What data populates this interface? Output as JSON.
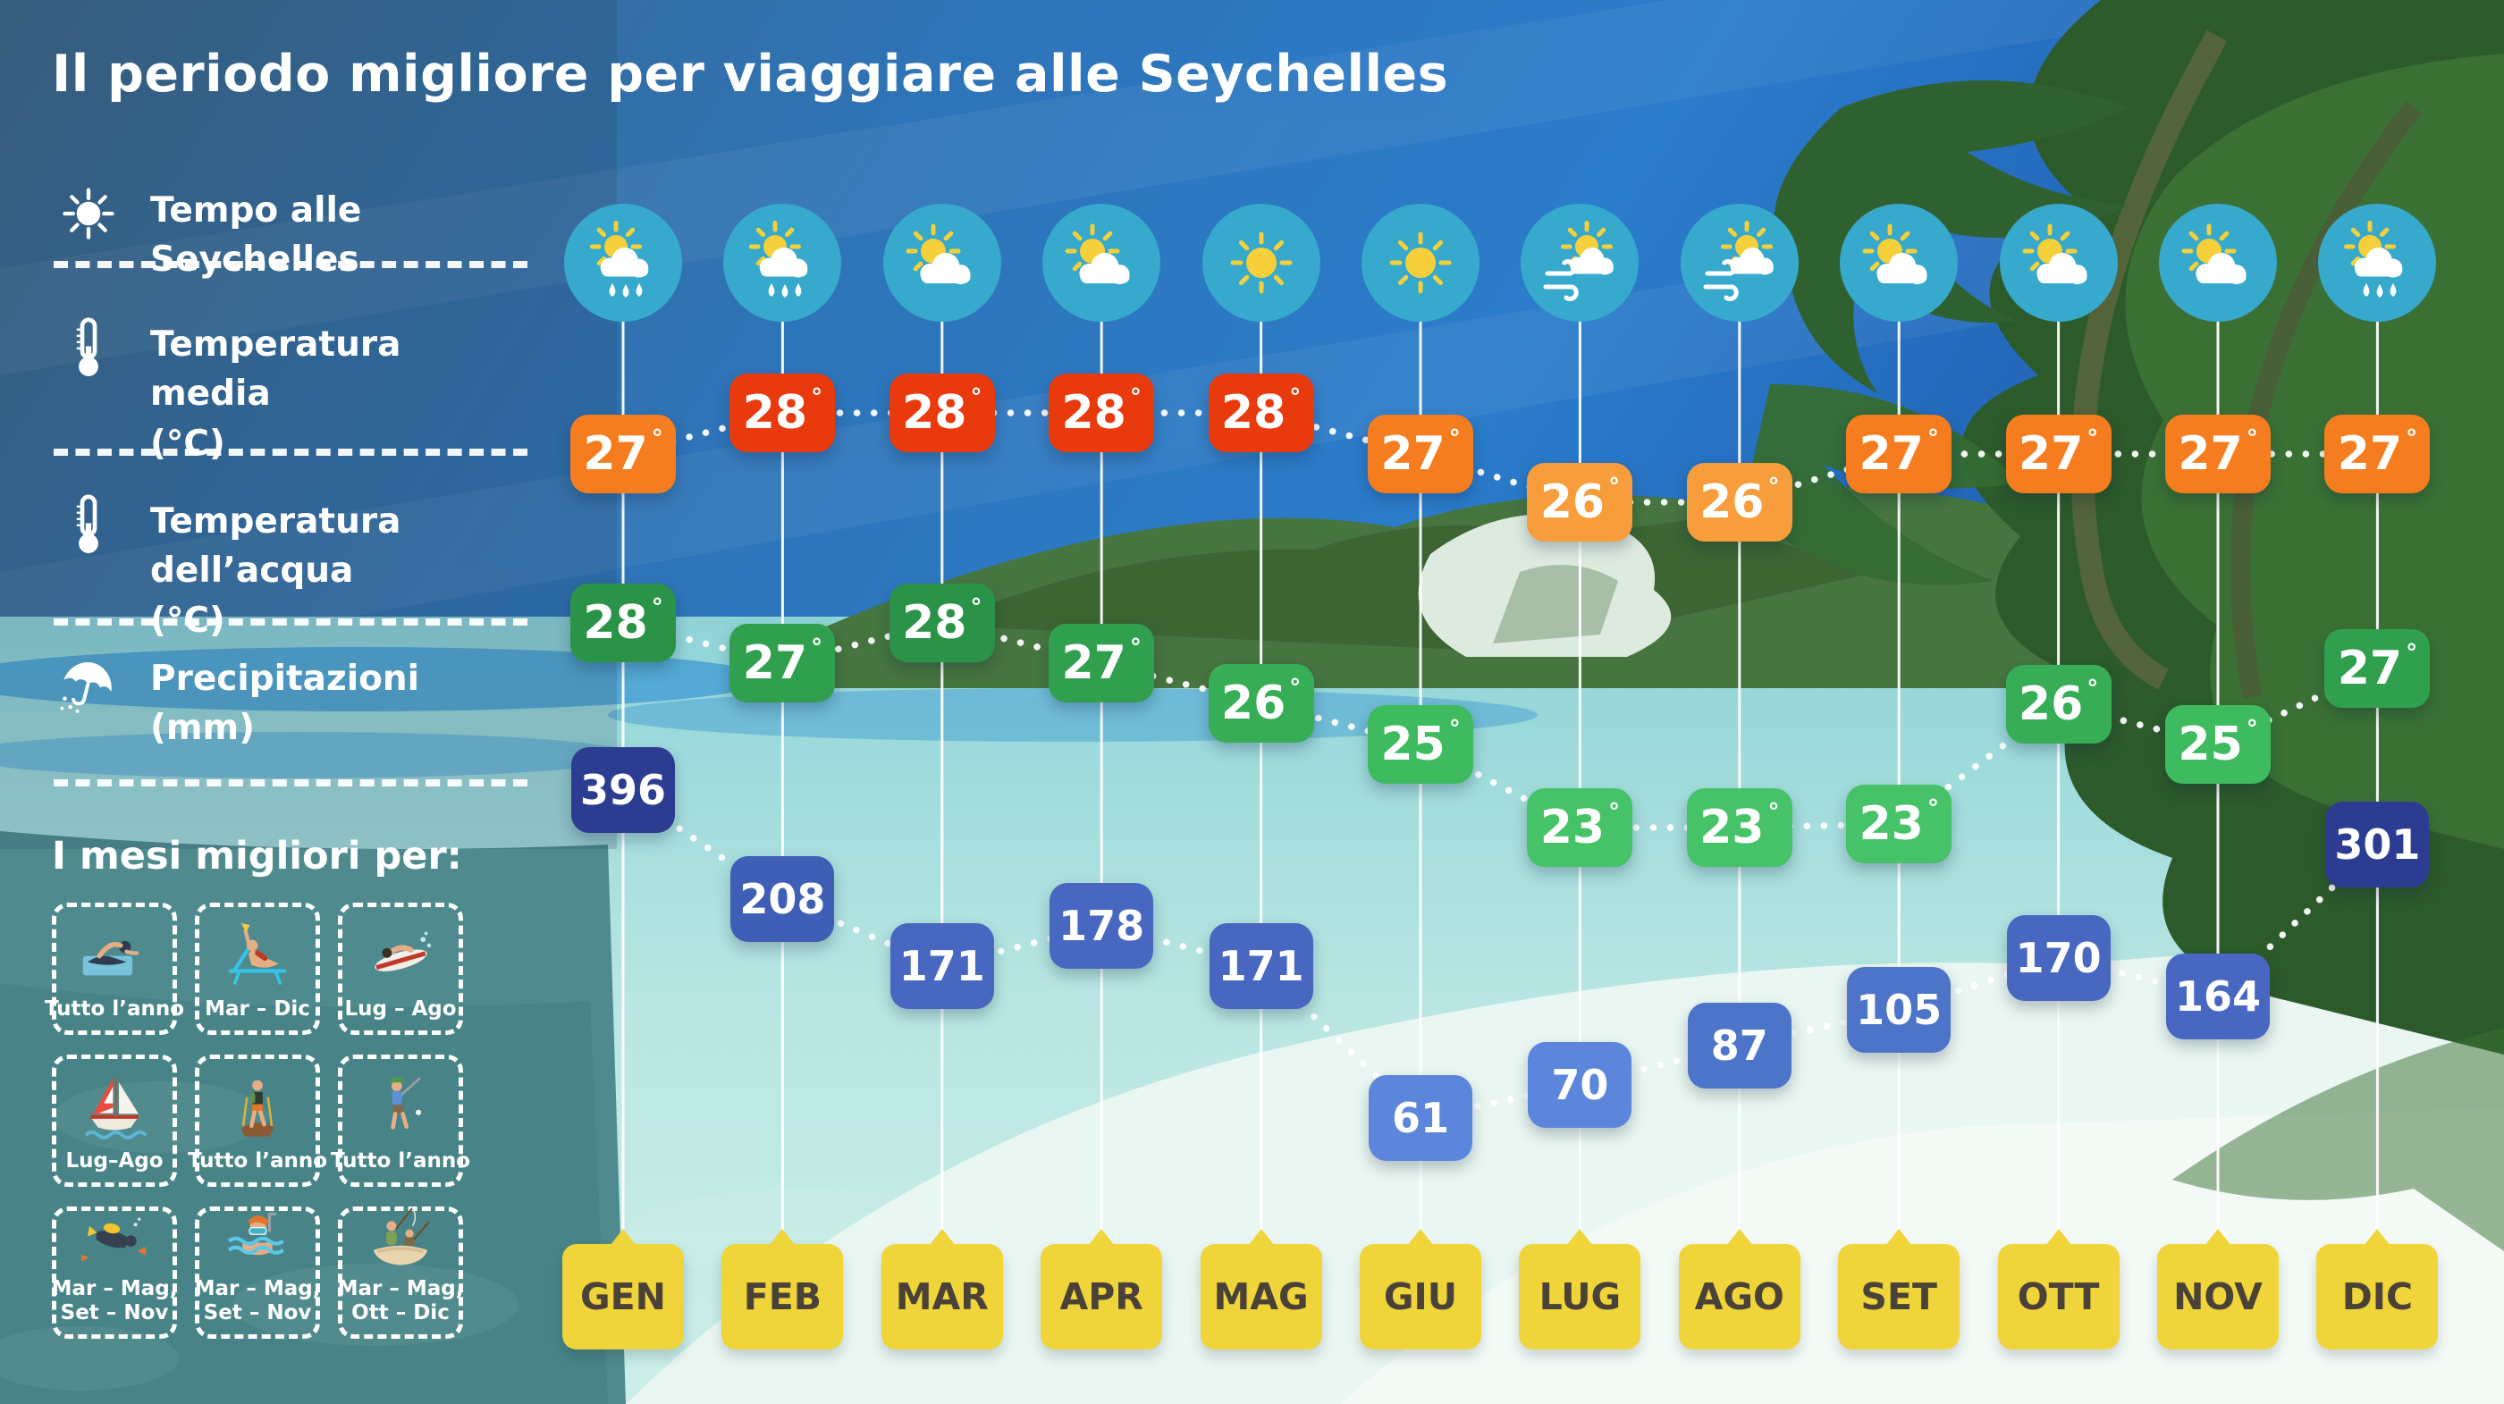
{
  "title": "Il periodo migliore per viaggiare alle Seychelles",
  "legend": {
    "items": [
      {
        "icon": "sun-icon",
        "lines": [
          "Tempo alle Seychelles"
        ]
      },
      {
        "icon": "thermometer-icon",
        "lines": [
          "Temperatura media",
          "(°C)"
        ]
      },
      {
        "icon": "thermometer-icon",
        "lines": [
          "Temperatura dell’acqua",
          "(°C)"
        ]
      },
      {
        "icon": "umbrella-rain-icon",
        "lines": [
          "Precipitazioni",
          "(mm)"
        ]
      }
    ]
  },
  "best_months": {
    "heading": "I mesi migliori per:",
    "activities": [
      {
        "icon": "swimming-icon",
        "label_lines": [
          "Tutto l’anno"
        ]
      },
      {
        "icon": "sunbathing-icon",
        "label_lines": [
          "Mar – Dic"
        ]
      },
      {
        "icon": "surfing-icon",
        "label_lines": [
          "Lug – Ago"
        ]
      },
      {
        "icon": "sailing-icon",
        "label_lines": [
          "Lug–Ago"
        ]
      },
      {
        "icon": "hiking-icon",
        "label_lines": [
          "Tutto l’anno"
        ]
      },
      {
        "icon": "golf-icon",
        "label_lines": [
          "Tutto l’anno"
        ]
      },
      {
        "icon": "scuba-diving-icon",
        "label_lines": [
          "Mar – Mag,",
          "Set – Nov"
        ]
      },
      {
        "icon": "snorkeling-icon",
        "label_lines": [
          "Mar – Mag,",
          "Set – Nov"
        ]
      },
      {
        "icon": "fishing-icon",
        "label_lines": [
          "Mar – Mag,",
          "Ott – Dic"
        ]
      }
    ]
  },
  "months": [
    {
      "label": "GEN",
      "weather": "sun-cloud-rain",
      "avg_temp": "27°",
      "water_temp": "28°",
      "precipitation": "396"
    },
    {
      "label": "FEB",
      "weather": "sun-cloud-rain",
      "avg_temp": "28°",
      "water_temp": "27°",
      "precipitation": "208"
    },
    {
      "label": "MAR",
      "weather": "sun-cloud",
      "avg_temp": "28°",
      "water_temp": "28°",
      "precipitation": "171"
    },
    {
      "label": "APR",
      "weather": "sun-cloud",
      "avg_temp": "28°",
      "water_temp": "27°",
      "precipitation": "178"
    },
    {
      "label": "MAG",
      "weather": "sun",
      "avg_temp": "28°",
      "water_temp": "26°",
      "precipitation": "171"
    },
    {
      "label": "GIU",
      "weather": "sun",
      "avg_temp": "27°",
      "water_temp": "25°",
      "precipitation": "61"
    },
    {
      "label": "LUG",
      "weather": "sun-cloud-wind",
      "avg_temp": "26°",
      "water_temp": "23°",
      "precipitation": "70"
    },
    {
      "label": "AGO",
      "weather": "sun-cloud-wind",
      "avg_temp": "26°",
      "water_temp": "23°",
      "precipitation": "87"
    },
    {
      "label": "SET",
      "weather": "sun-cloud",
      "avg_temp": "27°",
      "water_temp": "23°",
      "precipitation": "105"
    },
    {
      "label": "OTT",
      "weather": "sun-cloud",
      "avg_temp": "27°",
      "water_temp": "26°",
      "precipitation": "170"
    },
    {
      "label": "NOV",
      "weather": "sun-cloud",
      "avg_temp": "27°",
      "water_temp": "25°",
      "precipitation": "164"
    },
    {
      "label": "DIC",
      "weather": "sun-cloud-rain",
      "avg_temp": "27°",
      "water_temp": "27°",
      "precipitation": "301"
    }
  ],
  "chart_data": {
    "type": "line",
    "categories": [
      "GEN",
      "FEB",
      "MAR",
      "APR",
      "MAG",
      "GIU",
      "LUG",
      "AGO",
      "SET",
      "OTT",
      "NOV",
      "DIC"
    ],
    "series": [
      {
        "name": "Temperatura media (°C)",
        "values": [
          27,
          28,
          28,
          28,
          28,
          27,
          26,
          26,
          27,
          27,
          27,
          27
        ]
      },
      {
        "name": "Temperatura dell’acqua (°C)",
        "values": [
          28,
          27,
          28,
          27,
          26,
          25,
          23,
          23,
          23,
          26,
          25,
          27
        ]
      },
      {
        "name": "Precipitazioni (mm)",
        "values": [
          396,
          208,
          171,
          178,
          171,
          61,
          70,
          87,
          105,
          170,
          164,
          301
        ]
      }
    ],
    "weather_by_month": [
      "sun-cloud-rain",
      "sun-cloud-rain",
      "sun-cloud",
      "sun-cloud",
      "sun",
      "sun",
      "sun-cloud-wind",
      "sun-cloud-wind",
      "sun-cloud",
      "sun-cloud",
      "sun-cloud",
      "sun-cloud-rain"
    ],
    "title": "Il periodo migliore per viaggiare alle Seychelles",
    "legend_position": "left",
    "grid": "vertical-month-lines"
  },
  "colors": {
    "avg_28": "#e93a0e",
    "avg_27": "#f57d1f",
    "avg_26": "#f79d3c",
    "water_28": "#2b9347",
    "water_27": "#31a04e",
    "water_26": "#37ae55",
    "water_25": "#3fbb5f",
    "water_23": "#46c368",
    "precip_300": "#2c3d91",
    "precip_200": "#3f5eb5",
    "precip_160": "#4767c0",
    "precip_85": "#4c74c9",
    "precip_low": "#5b86dc",
    "month_tag": "#efd53a",
    "month_text": "#4a4238",
    "weather_circle": "#36a9cd",
    "connector": "#ffffff"
  }
}
